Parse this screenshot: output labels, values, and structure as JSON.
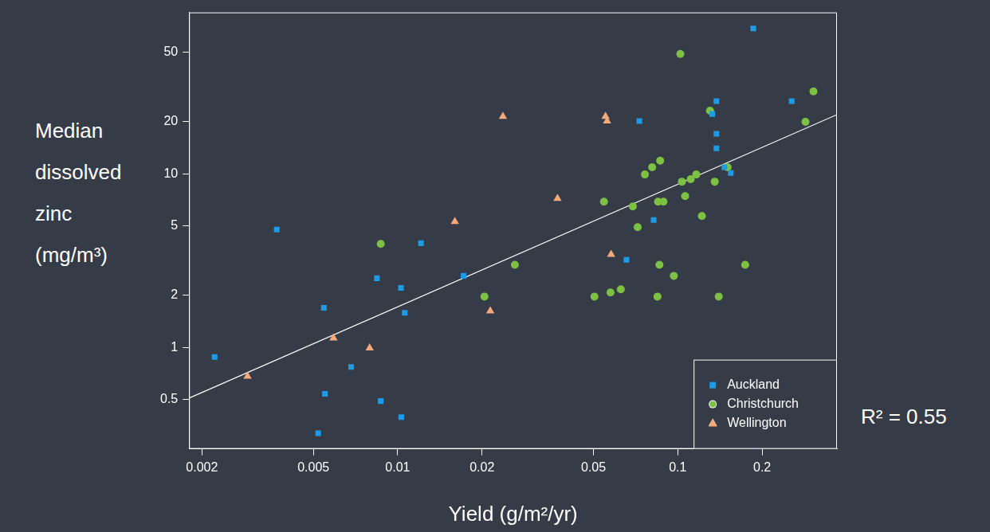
{
  "chart_data": {
    "type": "scatter",
    "x_label": "Yield (g/m²/yr)",
    "y_label": "Median dissolved zinc (mg/m³)",
    "log": true,
    "grid": false,
    "legend": "bottom-right",
    "xlim": [
      0.0018,
      0.37
    ],
    "ylim": [
      0.26,
      85
    ],
    "xticks": [
      0.002,
      0.005,
      0.01,
      0.02,
      0.05,
      0.1,
      0.2
    ],
    "yticks": [
      0.5,
      1,
      2,
      5,
      10,
      20,
      50
    ],
    "series": [
      {
        "name": "Auckland",
        "color": "#1e9be6",
        "marker": "square",
        "x": [
          0.00222,
          0.0037,
          0.00545,
          0.0055,
          0.0052,
          0.00682,
          0.00843,
          0.0087,
          0.01027,
          0.0106,
          0.0103,
          0.01211,
          0.01718,
          0.0656,
          0.082,
          0.0729,
          0.1328,
          0.1374,
          0.1374,
          0.1374,
          0.1466,
          0.1546,
          0.186,
          0.255
        ],
        "values": [
          0.88,
          4.77,
          1.69,
          0.54,
          0.32,
          0.77,
          2.5,
          0.49,
          2.2,
          1.58,
          0.396,
          3.98,
          2.58,
          3.19,
          5.41,
          20.1,
          22.1,
          26.2,
          17.0,
          14.0,
          10.9,
          10.1,
          68.7,
          26.2
        ]
      },
      {
        "name": "Christchurch",
        "color": "#7cc142",
        "marker": "circle",
        "x": [
          0.0087,
          0.0204,
          0.0262,
          0.0504,
          0.0545,
          0.0575,
          0.0626,
          0.0691,
          0.0719,
          0.0763,
          0.081,
          0.0865,
          0.085,
          0.0889,
          0.086,
          0.0846,
          0.0968,
          0.1021,
          0.1034,
          0.1062,
          0.1112,
          0.1164,
          0.1219,
          0.1303,
          0.1355,
          0.14,
          0.1506,
          0.174,
          0.2857,
          0.305
        ],
        "values": [
          3.94,
          1.96,
          2.99,
          1.96,
          6.9,
          2.07,
          2.16,
          6.48,
          4.92,
          9.9,
          10.9,
          11.9,
          6.9,
          6.9,
          2.99,
          1.96,
          2.58,
          49,
          9.0,
          7.43,
          9.3,
          9.9,
          5.71,
          23.1,
          9.0,
          1.96,
          10.9,
          2.99,
          19.9,
          29.8
        ]
      },
      {
        "name": "Wellington",
        "color": "#f4a97a",
        "marker": "triangle",
        "x": [
          0.00291,
          0.0059,
          0.00794,
          0.016,
          0.0214,
          0.02375,
          0.0372,
          0.0552,
          0.0559,
          0.0578
        ],
        "values": [
          0.68,
          1.13,
          0.99,
          5.3,
          1.62,
          21.4,
          7.2,
          21.4,
          20.1,
          3.43
        ]
      }
    ],
    "fit_line": {
      "x": [
        0.0018,
        0.37
      ],
      "values": [
        0.51,
        21.9
      ],
      "color": "#ffffff",
      "line_style": "solid"
    },
    "annotations": [
      {
        "text": "R² = 0.55"
      }
    ]
  }
}
